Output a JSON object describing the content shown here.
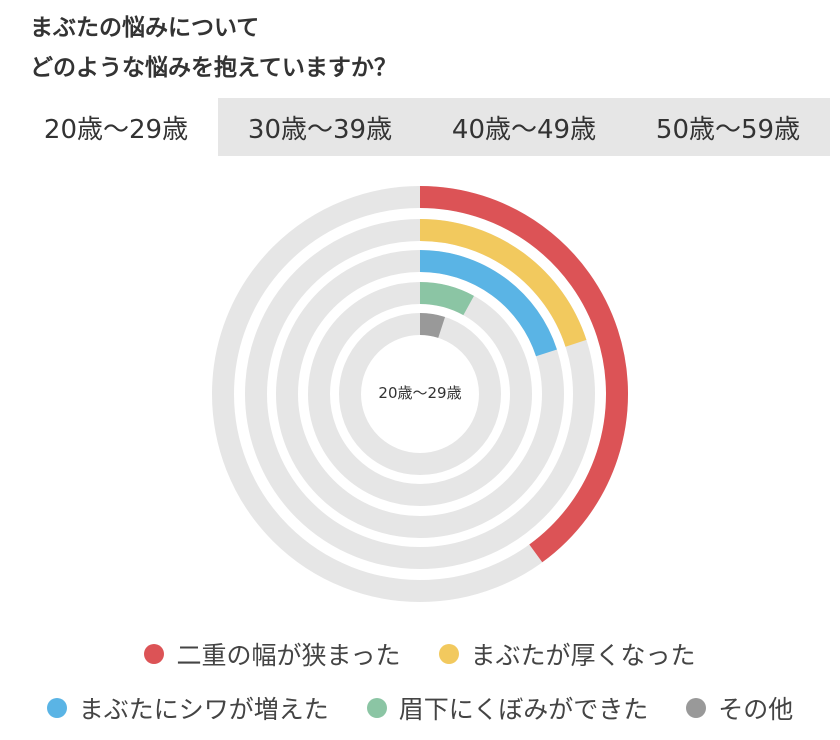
{
  "title": {
    "line1": "まぶたの悩みについて",
    "line2": "どのような悩みを抱えていますか？"
  },
  "tabs": [
    {
      "label": "20歳〜29歳",
      "active": true
    },
    {
      "label": "30歳〜39歳",
      "active": false
    },
    {
      "label": "40歳〜49歳",
      "active": false
    },
    {
      "label": "50歳〜59歳",
      "active": false
    }
  ],
  "colors": {
    "track": "#e6e6e6",
    "series": [
      "#dc5356",
      "#f2c95e",
      "#5ab4e5",
      "#8bc5a4",
      "#999999"
    ]
  },
  "chart_data": {
    "type": "radial-bar",
    "center_label": "20歳〜29歳",
    "categories": [
      "二重の幅が狭まった",
      "まぶたが厚くなった",
      "まぶたにシワが増えた",
      "眉下にくぼみができた",
      "その他"
    ],
    "values": [
      40,
      20,
      20,
      8,
      5
    ],
    "max": 100,
    "unit": "%",
    "legend": "bottom"
  }
}
